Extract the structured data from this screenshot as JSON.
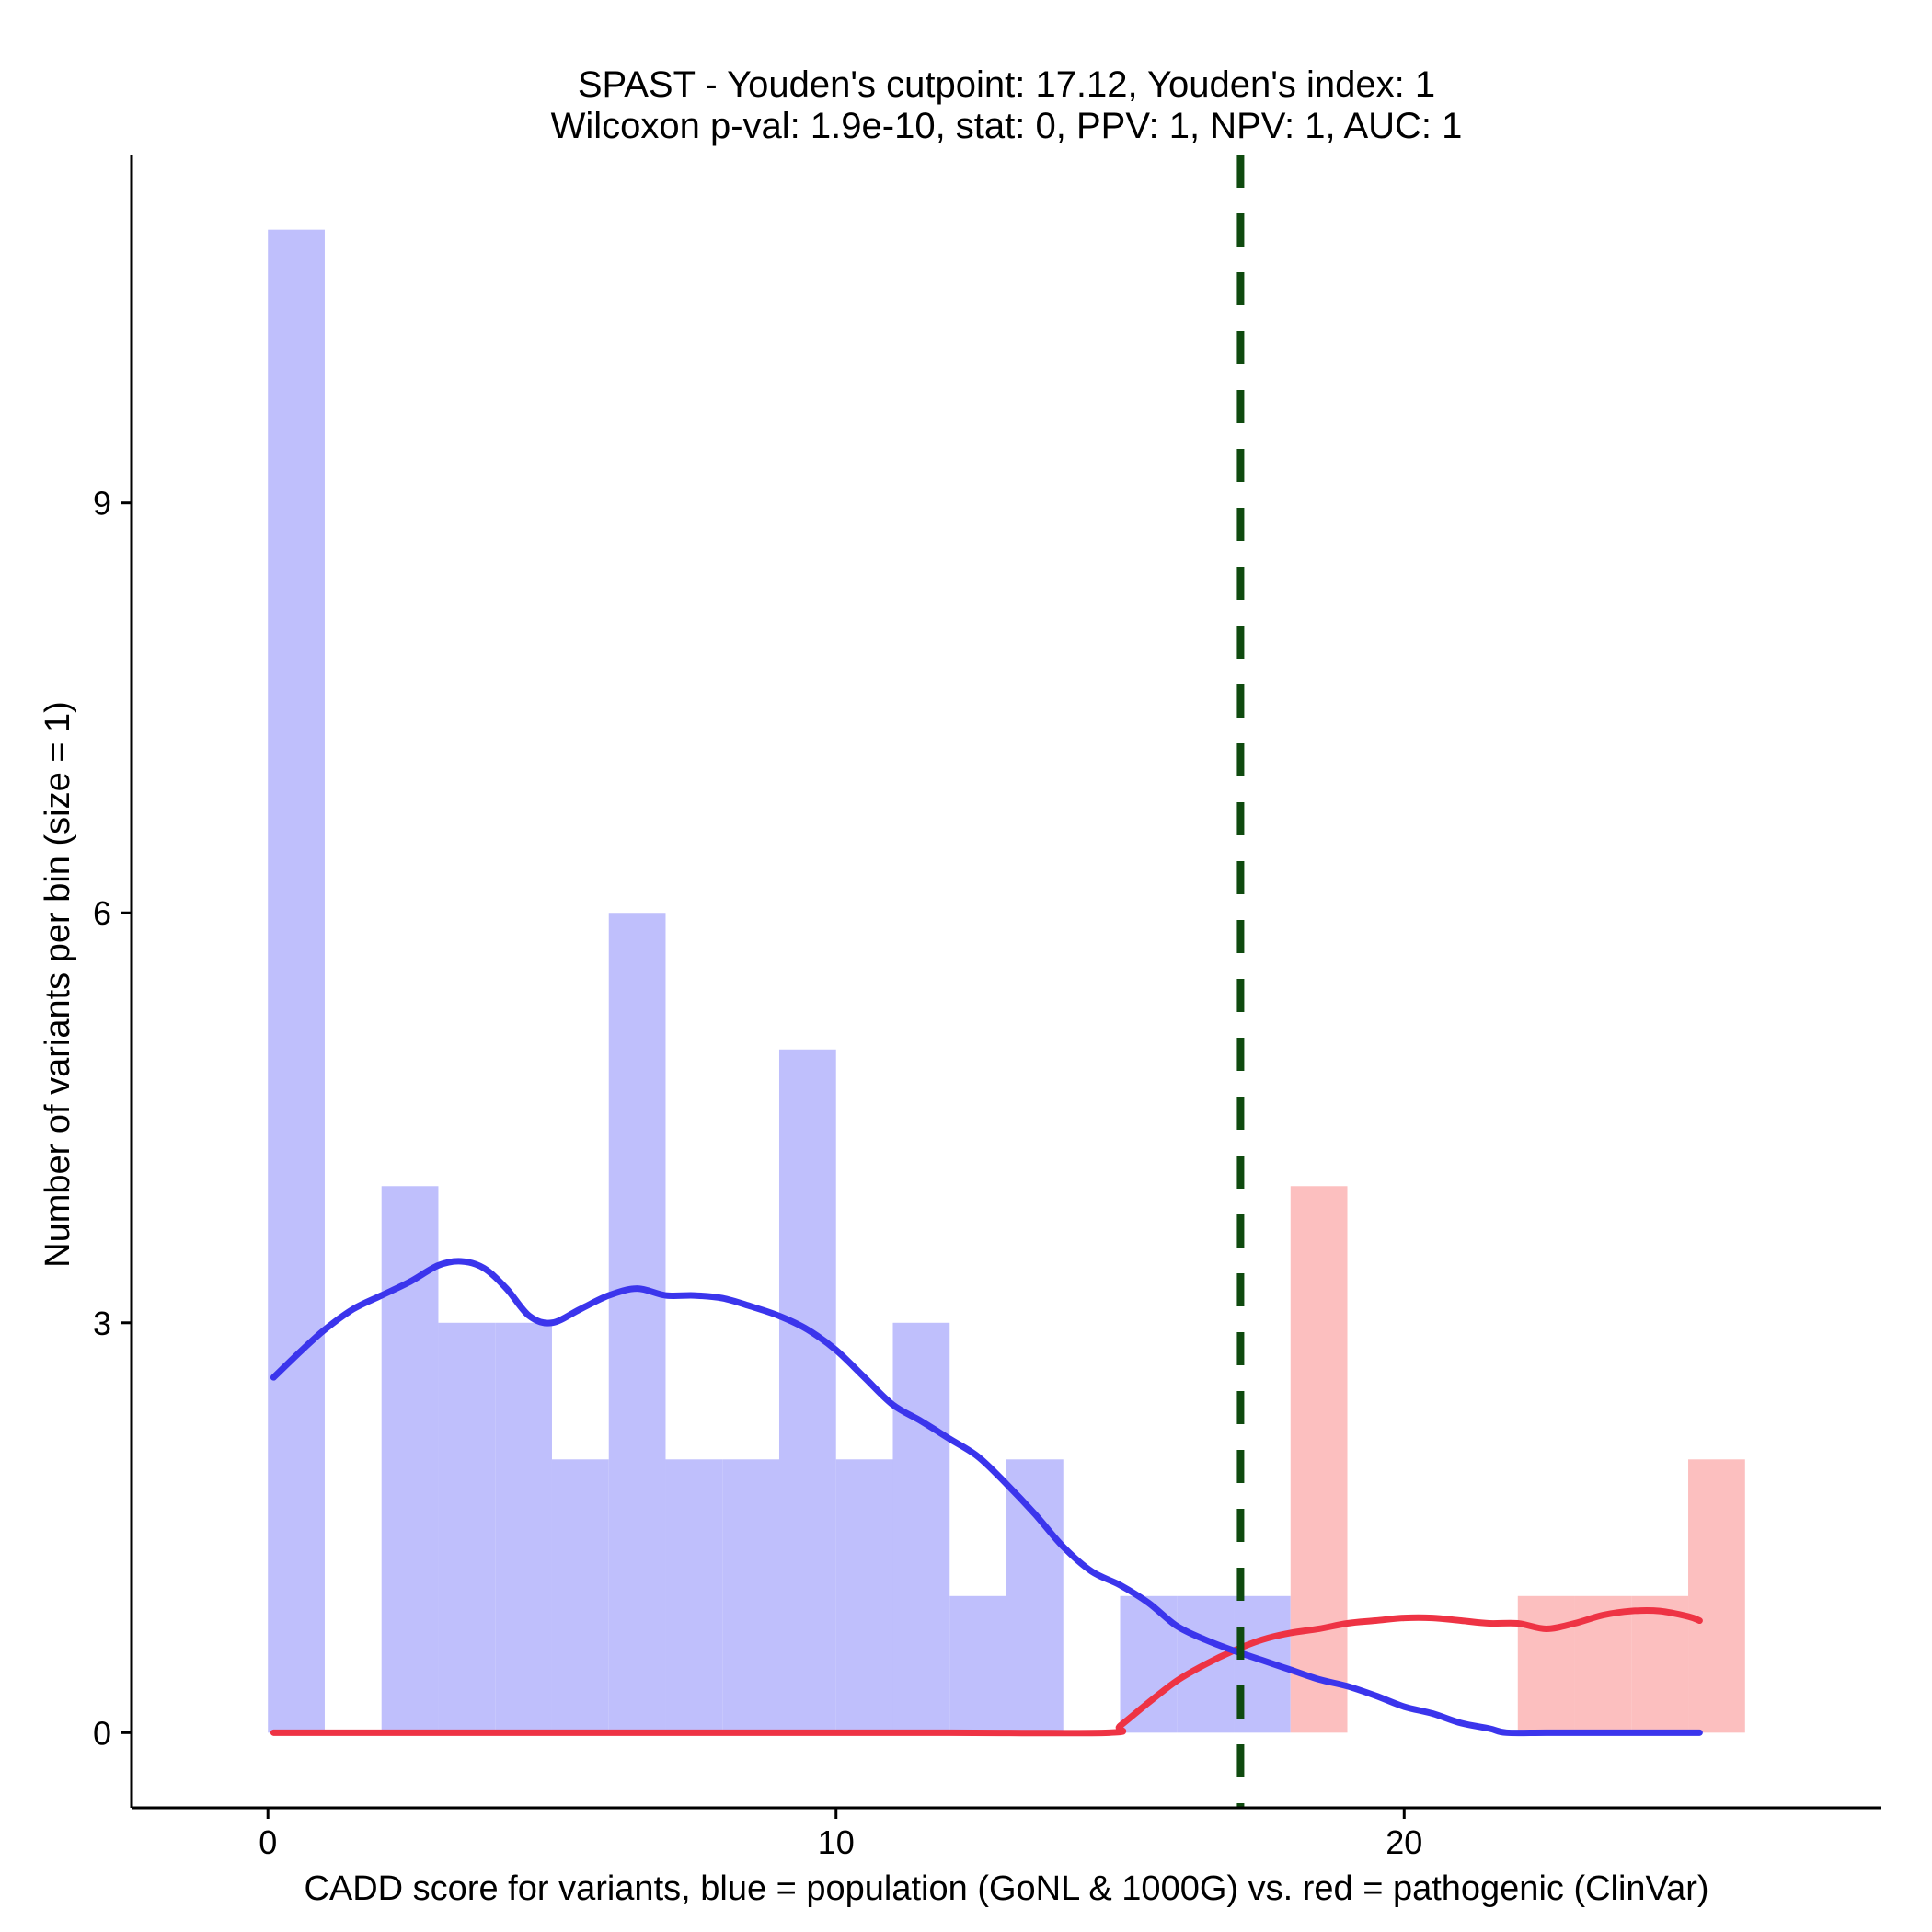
{
  "chart_data": {
    "type": "bar",
    "title_line1": "SPAST - Youden's cutpoint: 17.12, Youden's index: 1",
    "title_line2": "Wilcoxon p-val: 1.9e-10, stat: 0, PPV: 1, NPV: 1, AUC: 1",
    "xlabel": "CADD score for variants, blue = population (GoNL & 1000G) vs. red = pathogenic (ClinVar)",
    "ylabel": "Number of variants per bin (size = 1)",
    "xlim": [
      -2.4,
      28.4
    ],
    "ylim": [
      -0.55,
      11.55
    ],
    "x_ticks": [
      0,
      10,
      20
    ],
    "y_ticks": [
      0,
      3,
      6,
      9
    ],
    "bin_width": 1,
    "cutpoint": 17.12,
    "colors": {
      "population_bar": "#bfbffc",
      "pathogenic_bar": "#fcbfbf",
      "population_line": "#3b35ec",
      "pathogenic_line": "#ee3344",
      "cutpoint_line": "#0f4a0f"
    },
    "series": [
      {
        "name": "population (GoNL & 1000G)",
        "bins": [
          {
            "x0": 0,
            "count": 11
          },
          {
            "x0": 1,
            "count": 0
          },
          {
            "x0": 2,
            "count": 4
          },
          {
            "x0": 3,
            "count": 3
          },
          {
            "x0": 4,
            "count": 3
          },
          {
            "x0": 5,
            "count": 2
          },
          {
            "x0": 6,
            "count": 6
          },
          {
            "x0": 7,
            "count": 2
          },
          {
            "x0": 8,
            "count": 2
          },
          {
            "x0": 9,
            "count": 5
          },
          {
            "x0": 10,
            "count": 2
          },
          {
            "x0": 11,
            "count": 3
          },
          {
            "x0": 12,
            "count": 1
          },
          {
            "x0": 13,
            "count": 2
          },
          {
            "x0": 14,
            "count": 0
          },
          {
            "x0": 15,
            "count": 1
          },
          {
            "x0": 16,
            "count": 1
          },
          {
            "x0": 17,
            "count": 1
          }
        ],
        "smooth": [
          [
            0.1,
            2.6
          ],
          [
            0.6,
            2.8
          ],
          [
            1,
            2.95
          ],
          [
            1.5,
            3.1
          ],
          [
            2,
            3.2
          ],
          [
            2.5,
            3.3
          ],
          [
            3,
            3.42
          ],
          [
            3.4,
            3.45
          ],
          [
            3.8,
            3.4
          ],
          [
            4.2,
            3.25
          ],
          [
            4.6,
            3.05
          ],
          [
            5,
            3.0
          ],
          [
            5.5,
            3.1
          ],
          [
            6,
            3.2
          ],
          [
            6.5,
            3.25
          ],
          [
            7,
            3.2
          ],
          [
            7.5,
            3.2
          ],
          [
            8,
            3.18
          ],
          [
            8.5,
            3.12
          ],
          [
            9,
            3.05
          ],
          [
            9.5,
            2.95
          ],
          [
            10,
            2.8
          ],
          [
            10.5,
            2.6
          ],
          [
            11,
            2.4
          ],
          [
            11.5,
            2.28
          ],
          [
            12,
            2.15
          ],
          [
            12.5,
            2.02
          ],
          [
            13,
            1.82
          ],
          [
            13.5,
            1.6
          ],
          [
            14,
            1.36
          ],
          [
            14.5,
            1.18
          ],
          [
            15,
            1.08
          ],
          [
            15.5,
            0.95
          ],
          [
            16,
            0.78
          ],
          [
            16.5,
            0.68
          ],
          [
            17,
            0.6
          ],
          [
            17.5,
            0.53
          ],
          [
            18,
            0.46
          ],
          [
            18.5,
            0.39
          ],
          [
            19,
            0.34
          ],
          [
            19.5,
            0.27
          ],
          [
            20,
            0.19
          ],
          [
            20.5,
            0.14
          ],
          [
            21,
            0.07
          ],
          [
            21.5,
            0.03
          ],
          [
            21.8,
            0.0
          ],
          [
            22.5,
            0.0
          ],
          [
            23.5,
            0.0
          ],
          [
            24.5,
            0.0
          ],
          [
            25.2,
            0.0
          ]
        ]
      },
      {
        "name": "pathogenic (ClinVar)",
        "bins": [
          {
            "x0": 18,
            "count": 4
          },
          {
            "x0": 19,
            "count": 0
          },
          {
            "x0": 20,
            "count": 0
          },
          {
            "x0": 21,
            "count": 0
          },
          {
            "x0": 22,
            "count": 1
          },
          {
            "x0": 23,
            "count": 1
          },
          {
            "x0": 24,
            "count": 1
          },
          {
            "x0": 25,
            "count": 2
          }
        ],
        "smooth": [
          [
            0.1,
            0.0
          ],
          [
            3,
            0.0
          ],
          [
            6,
            0.0
          ],
          [
            9,
            0.0
          ],
          [
            12,
            0.0
          ],
          [
            14.8,
            0.0
          ],
          [
            15,
            0.05
          ],
          [
            15.5,
            0.22
          ],
          [
            16,
            0.38
          ],
          [
            16.5,
            0.5
          ],
          [
            17,
            0.6
          ],
          [
            17.5,
            0.68
          ],
          [
            18,
            0.73
          ],
          [
            18.5,
            0.76
          ],
          [
            19,
            0.8
          ],
          [
            19.5,
            0.82
          ],
          [
            20,
            0.84
          ],
          [
            20.5,
            0.84
          ],
          [
            21,
            0.82
          ],
          [
            21.5,
            0.8
          ],
          [
            22,
            0.8
          ],
          [
            22.5,
            0.76
          ],
          [
            23,
            0.8
          ],
          [
            23.5,
            0.86
          ],
          [
            24,
            0.89
          ],
          [
            24.5,
            0.89
          ],
          [
            25,
            0.85
          ],
          [
            25.2,
            0.82
          ]
        ]
      }
    ]
  }
}
